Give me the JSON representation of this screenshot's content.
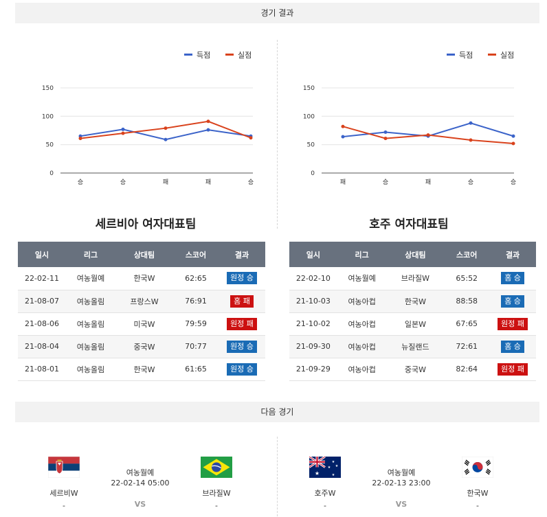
{
  "sections": {
    "results_title": "경기 결과",
    "next_title": "다음 경기"
  },
  "colors": {
    "scored": "#3b63c9",
    "conceded": "#d9421c",
    "win_badge": "#1a6bb5",
    "loss_badge": "#cc1111",
    "header_bg": "#68717e"
  },
  "legend": {
    "scored": "득점",
    "conceded": "실점"
  },
  "charts": {
    "left": {
      "yticks": [
        "0",
        "50",
        "100",
        "150"
      ],
      "categories": [
        "승",
        "승",
        "패",
        "패",
        "승"
      ]
    },
    "right": {
      "yticks": [
        "0",
        "50",
        "100",
        "150"
      ],
      "categories": [
        "패",
        "승",
        "패",
        "승",
        "승"
      ]
    }
  },
  "chart_data": [
    {
      "type": "line",
      "categories": [
        "승",
        "승",
        "패",
        "패",
        "승"
      ],
      "ylim": [
        0,
        150
      ],
      "grid": true,
      "legend_position": "top-right",
      "series": [
        {
          "name": "득점",
          "values": [
            65,
            77,
            59,
            76,
            65
          ]
        },
        {
          "name": "실점",
          "values": [
            61,
            70,
            79,
            91,
            62
          ]
        }
      ]
    },
    {
      "type": "line",
      "categories": [
        "패",
        "승",
        "패",
        "승",
        "승"
      ],
      "ylim": [
        0,
        150
      ],
      "grid": true,
      "legend_position": "top-right",
      "series": [
        {
          "name": "득점",
          "values": [
            64,
            72,
            65,
            88,
            65
          ]
        },
        {
          "name": "실점",
          "values": [
            82,
            61,
            67,
            58,
            52
          ]
        }
      ]
    }
  ],
  "tables": {
    "headers": [
      "일시",
      "리그",
      "상대팀",
      "스코어",
      "결과"
    ],
    "left": {
      "team": "세르비아 여자대표팀",
      "rows": [
        {
          "date": "22-02-11",
          "league": "여농월예",
          "opp": "한국W",
          "score": "62:65",
          "result": "원정 승",
          "type": "win"
        },
        {
          "date": "21-08-07",
          "league": "여농올림",
          "opp": "프랑스W",
          "score": "76:91",
          "result": "홈 패",
          "type": "loss"
        },
        {
          "date": "21-08-06",
          "league": "여농올림",
          "opp": "미국W",
          "score": "79:59",
          "result": "원정 패",
          "type": "loss"
        },
        {
          "date": "21-08-04",
          "league": "여농올림",
          "opp": "중국W",
          "score": "70:77",
          "result": "원정 승",
          "type": "win"
        },
        {
          "date": "21-08-01",
          "league": "여농올림",
          "opp": "한국W",
          "score": "61:65",
          "result": "원정 승",
          "type": "win"
        }
      ]
    },
    "right": {
      "team": "호주 여자대표팀",
      "rows": [
        {
          "date": "22-02-10",
          "league": "여농월예",
          "opp": "브라질W",
          "score": "65:52",
          "result": "홈 승",
          "type": "win"
        },
        {
          "date": "21-10-03",
          "league": "여농아컵",
          "opp": "한국W",
          "score": "88:58",
          "result": "홈 승",
          "type": "win"
        },
        {
          "date": "21-10-02",
          "league": "여농아컵",
          "opp": "일본W",
          "score": "67:65",
          "result": "원정 패",
          "type": "loss"
        },
        {
          "date": "21-09-30",
          "league": "여농아컵",
          "opp": "뉴질랜드",
          "score": "72:61",
          "result": "홈 승",
          "type": "win"
        },
        {
          "date": "21-09-29",
          "league": "여농아컵",
          "opp": "중국W",
          "score": "82:64",
          "result": "원정 패",
          "type": "loss"
        }
      ]
    }
  },
  "next_matches": {
    "left": {
      "league": "여농월예",
      "time": "22-02-14 05:00",
      "vs": "VS",
      "home": {
        "name": "세르비W",
        "score": "-",
        "flag": "serbia-flag"
      },
      "away": {
        "name": "브라질W",
        "score": "-",
        "flag": "brazil-flag"
      }
    },
    "right": {
      "league": "여농월예",
      "time": "22-02-13 23:00",
      "vs": "VS",
      "home": {
        "name": "호주W",
        "score": "-",
        "flag": "australia-flag"
      },
      "away": {
        "name": "한국W",
        "score": "-",
        "flag": "korea-flag"
      }
    }
  }
}
